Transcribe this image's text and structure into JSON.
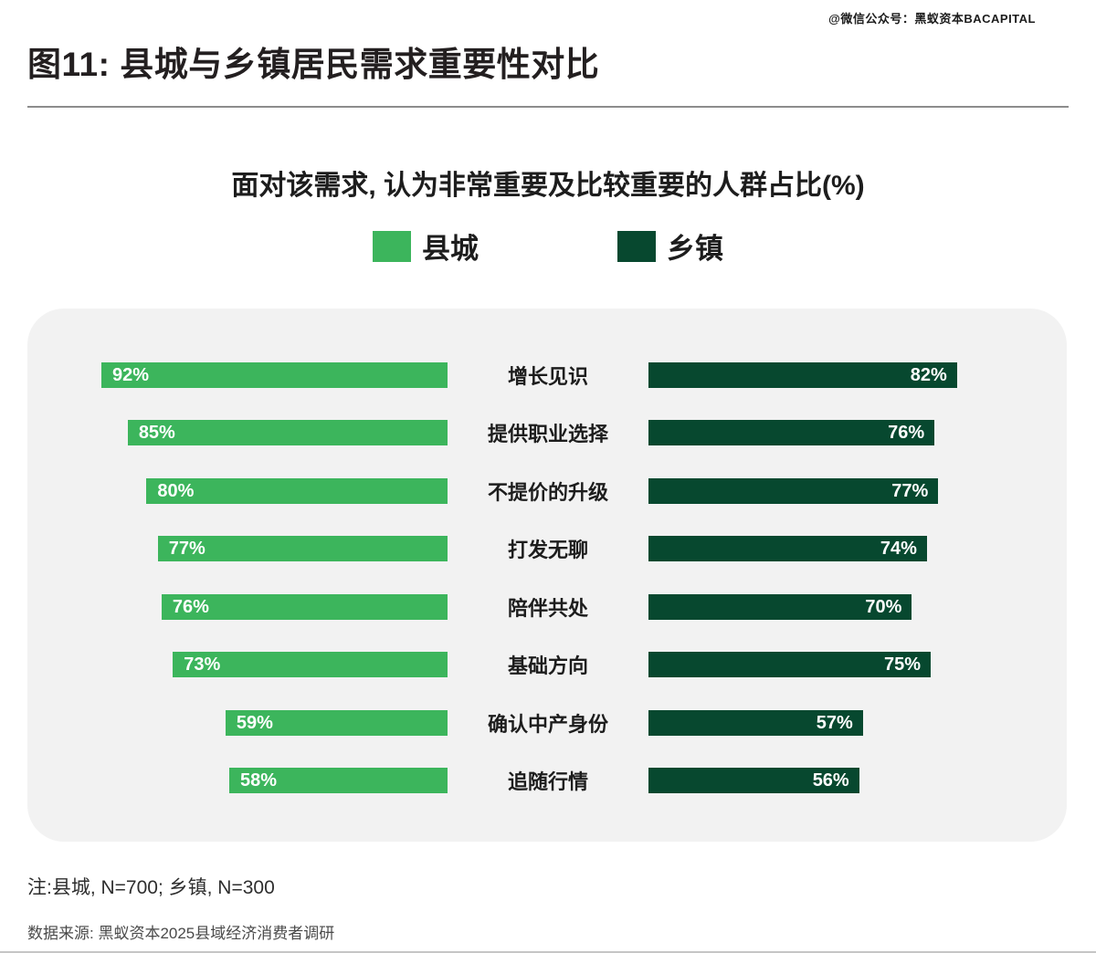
{
  "watermark": "@微信公众号：黑蚁资本BACAPITAL",
  "title": "图11: 县城与乡镇居民需求重要性对比",
  "chart_data": {
    "type": "bar",
    "subtype": "mirrored-horizontal-comparison",
    "title": "面对该需求, 认为非常重要及比较重要的人群占比(%)",
    "categories": [
      "增长见识",
      "提供职业选择",
      "不提价的升级",
      "打发无聊",
      "陪伴共处",
      "基础方向",
      "确认中产身份",
      "追随行情"
    ],
    "series": [
      {
        "name": "县城",
        "color": "#3CB55C",
        "values": [
          92,
          85,
          80,
          77,
          76,
          73,
          59,
          58
        ]
      },
      {
        "name": "乡镇",
        "color": "#07482F",
        "values": [
          82,
          76,
          77,
          74,
          70,
          75,
          57,
          56
        ]
      }
    ],
    "unit": "%",
    "xlim": [
      0,
      100
    ],
    "legend_position": "top-center",
    "value_labels": "inside-end",
    "grid": false
  },
  "footer": {
    "note": "注:县城, N=700; 乡镇, N=300",
    "source": "数据来源: 黑蚁资本2025县域经济消费者调研"
  },
  "colors": {
    "county_green": "#3CB55C",
    "township_green": "#07482F",
    "card_background": "#F2F2F2",
    "page_background": "#FFFFFF",
    "divider_gray": "#8C8C8C"
  }
}
